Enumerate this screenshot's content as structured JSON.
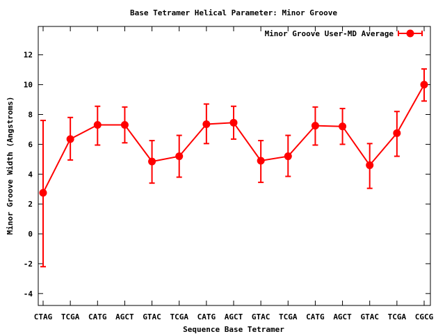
{
  "chart_data": {
    "type": "line",
    "title": "Base Tetramer Helical Parameter: Minor Groove",
    "xlabel": "Sequence Base Tetramer",
    "ylabel": "Minor Groove Width (Angstroms)",
    "categories": [
      "CTAG",
      "TCGA",
      "CATG",
      "AGCT",
      "GTAC",
      "TCGA",
      "CATG",
      "AGCT",
      "GTAC",
      "TCGA",
      "CATG",
      "AGCT",
      "GTAC",
      "TCGA",
      "CGCG"
    ],
    "ylim": [
      -4.8,
      13.9
    ],
    "yticks": [
      -4,
      -2,
      0,
      2,
      4,
      6,
      8,
      10,
      12
    ],
    "grid": false,
    "legend_position": "top-right",
    "series": [
      {
        "name": "Minor Groove User-MD Average",
        "color": "#ff0000",
        "values": [
          2.75,
          6.35,
          7.3,
          7.3,
          4.85,
          5.2,
          7.35,
          7.45,
          4.9,
          5.2,
          7.25,
          7.2,
          4.6,
          6.75,
          10.0
        ],
        "error_low": [
          -2.2,
          4.95,
          5.95,
          6.1,
          3.4,
          3.8,
          6.05,
          6.35,
          3.45,
          3.85,
          5.95,
          6.0,
          3.05,
          5.2,
          8.9
        ],
        "error_high": [
          7.6,
          7.8,
          8.55,
          8.5,
          6.25,
          6.6,
          8.7,
          8.55,
          6.25,
          6.6,
          8.5,
          8.4,
          6.05,
          8.2,
          11.05
        ]
      }
    ]
  }
}
